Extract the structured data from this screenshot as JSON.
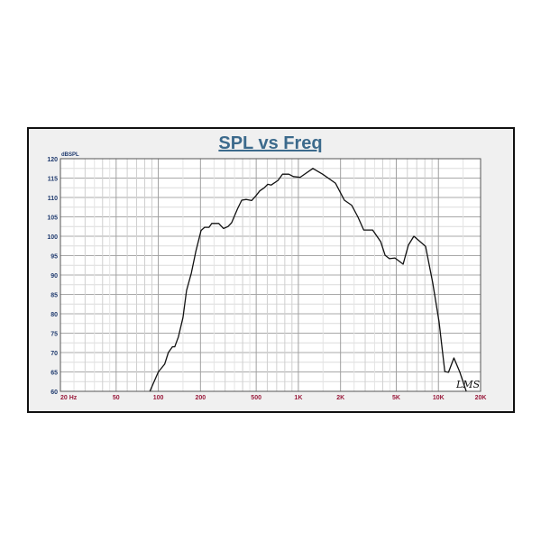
{
  "chart_data": {
    "type": "line",
    "title": "SPL vs Freq",
    "ylabel": "dBSPL",
    "xlabel": "",
    "x_scale": "log",
    "xlim": [
      20,
      20000
    ],
    "ylim": [
      60,
      120
    ],
    "grid": true,
    "x_tick_labels": [
      {
        "value": 20,
        "label": "20  Hz"
      },
      {
        "value": 50,
        "label": "50"
      },
      {
        "value": 100,
        "label": "100"
      },
      {
        "value": 200,
        "label": "200"
      },
      {
        "value": 500,
        "label": "500"
      },
      {
        "value": 1000,
        "label": "1K"
      },
      {
        "value": 2000,
        "label": "2K"
      },
      {
        "value": 5000,
        "label": "5K"
      },
      {
        "value": 10000,
        "label": "10K"
      },
      {
        "value": 20000,
        "label": "20K"
      }
    ],
    "y_ticks": [
      60,
      65,
      70,
      75,
      80,
      85,
      90,
      95,
      100,
      105,
      110,
      115,
      120
    ],
    "annotation": "LMS",
    "colors": {
      "line": "#111111",
      "title": "#3c6a8c",
      "y_labels": "#1f3a6e",
      "x_labels": "#9a1b3c",
      "grid": "#b8b8b8"
    },
    "series": [
      {
        "x": [
          87,
          100,
          111,
          118,
          126,
          131,
          139,
          150,
          159,
          172,
          185,
          202,
          214,
          230,
          241,
          270,
          292,
          314,
          334,
          367,
          394,
          425,
          464,
          500,
          530,
          570,
          605,
          640,
          715,
          770,
          855,
          920,
          1030,
          1270,
          1490,
          1840,
          2130,
          2400,
          2660,
          2930,
          3390,
          3870,
          4160,
          4470,
          4890,
          5600,
          6100,
          6680,
          8100,
          9100,
          10100,
          11100,
          11800,
          12900,
          14200,
          15800
        ],
        "y": [
          60,
          65,
          67,
          70,
          71.5,
          71.5,
          74,
          79,
          86,
          90.5,
          96,
          101.5,
          102.3,
          102.3,
          103.3,
          103.3,
          102,
          102.5,
          103.5,
          107,
          109.3,
          109.5,
          109.2,
          110.5,
          111.7,
          112.5,
          113.4,
          113.2,
          114.4,
          116,
          116,
          115.4,
          115.2,
          117.5,
          116,
          113.7,
          109.3,
          108,
          105,
          101.6,
          101.6,
          98.6,
          95.1,
          94.2,
          94.4,
          92.8,
          97.7,
          100,
          97.4,
          88,
          78,
          65.1,
          64.9,
          68.6,
          65,
          60
        ]
      }
    ]
  }
}
